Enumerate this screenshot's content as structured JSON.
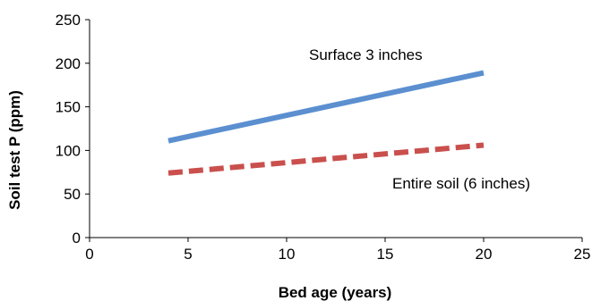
{
  "chart_data": {
    "type": "line",
    "title": "",
    "xlabel": "Bed age (years)",
    "ylabel": "Soil test P (ppm)",
    "xlim": [
      0,
      25
    ],
    "ylim": [
      0,
      250
    ],
    "x_ticks": [
      0,
      5,
      10,
      15,
      20,
      25
    ],
    "y_ticks": [
      0,
      50,
      100,
      150,
      200,
      250
    ],
    "grid": false,
    "legend": "none",
    "series": [
      {
        "label": "Surface 3 inches",
        "x": [
          4,
          20
        ],
        "y": [
          111,
          189
        ],
        "color": "#5b8fd0",
        "style": "solid"
      },
      {
        "label": "Entire soil (6 inches)",
        "x": [
          4,
          20
        ],
        "y": [
          74,
          106
        ],
        "color": "#c9504d",
        "style": "dashed"
      }
    ]
  }
}
